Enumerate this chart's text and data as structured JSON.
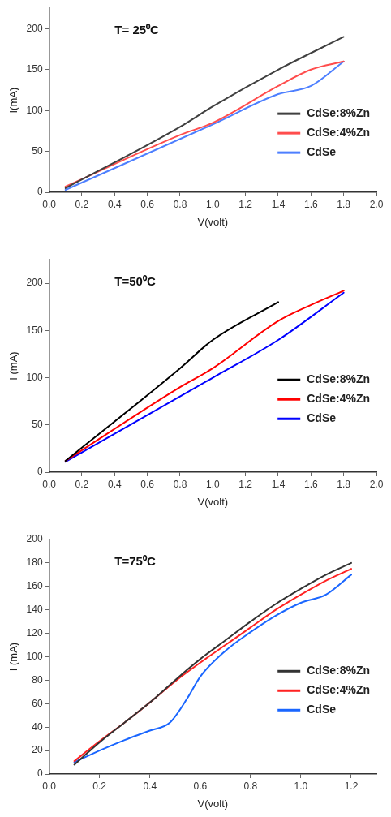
{
  "chart_data": [
    {
      "type": "line",
      "title": "T= 25⁰C",
      "xlabel": "V(volt)",
      "ylabel": "I(mA)",
      "xlim": [
        0,
        2
      ],
      "xticks": [
        {
          "value": 0,
          "label": "0.0"
        },
        0.2,
        0.4,
        0.6,
        0.8,
        {
          "value": 1,
          "label": "1.0"
        },
        1.2,
        1.4,
        1.6,
        1.8,
        {
          "value": 2,
          "label": "2.0"
        }
      ],
      "ylim": [
        0,
        225
      ],
      "yticks": [
        0,
        50,
        100,
        150,
        200
      ],
      "grid": false,
      "legend": "right",
      "marker": "none",
      "series": [
        {
          "name": "CdSe:8%Zn",
          "color": "#404040",
          "x": [
            0.1,
            0.8,
            1.0,
            1.4,
            1.8
          ],
          "values": [
            5,
            80,
            105,
            150,
            190
          ]
        },
        {
          "name": "CdSe:4%Zn",
          "color": "#ff4d4d",
          "x": [
            0.1,
            0.8,
            1.0,
            1.4,
            1.6,
            1.8
          ],
          "values": [
            7,
            70,
            85,
            130,
            150,
            160
          ]
        },
        {
          "name": "CdSe",
          "color": "#4d7fff",
          "x": [
            0.1,
            1.0,
            1.4,
            1.6,
            1.8
          ],
          "values": [
            3,
            83,
            120,
            130,
            160
          ]
        }
      ]
    },
    {
      "type": "line",
      "title": "T=50⁰C",
      "xlabel": "V(volt)",
      "ylabel": "I (mA)",
      "xlim": [
        0,
        2
      ],
      "xticks": [
        {
          "value": 0,
          "label": "0.0"
        },
        0.2,
        0.4,
        0.6,
        0.8,
        {
          "value": 1,
          "label": "1.0"
        },
        1.2,
        1.4,
        1.6,
        1.8,
        {
          "value": 2,
          "label": "2.0"
        }
      ],
      "ylim": [
        0,
        225
      ],
      "yticks": [
        0,
        50,
        100,
        150,
        200
      ],
      "grid": false,
      "legend": "right",
      "marker": "none",
      "series": [
        {
          "name": "CdSe:8%Zn",
          "color": "#000000",
          "x": [
            0.1,
            0.8,
            1.0,
            1.4
          ],
          "values": [
            12,
            110,
            140,
            180
          ]
        },
        {
          "name": "CdSe:4%Zn",
          "color": "#ff0000",
          "x": [
            0.1,
            0.8,
            1.0,
            1.4,
            1.6,
            1.8
          ],
          "values": [
            12,
            90,
            110,
            160,
            177,
            192
          ]
        },
        {
          "name": "CdSe",
          "color": "#0000ff",
          "x": [
            0.1,
            1.0,
            1.4,
            1.8
          ],
          "values": [
            11,
            100,
            140,
            190
          ]
        }
      ]
    },
    {
      "type": "line",
      "title": "T=75⁰C",
      "xlabel": "V(volt)",
      "ylabel": "I (mA)",
      "xlim": [
        0,
        1.3
      ],
      "xticks": [
        {
          "value": 0,
          "label": "0.0"
        },
        0.2,
        0.4,
        0.6,
        0.8,
        {
          "value": 1,
          "label": "1.0"
        },
        1.2
      ],
      "ylim": [
        0,
        200
      ],
      "yticks": [
        0,
        20,
        40,
        60,
        80,
        100,
        120,
        140,
        160,
        180,
        200
      ],
      "grid": false,
      "legend": "right",
      "marker": "none",
      "series": [
        {
          "name": "CdSe:8%Zn",
          "color": "#333333",
          "x": [
            0.1,
            0.2,
            0.3,
            0.4,
            0.5,
            0.6,
            0.7,
            0.8,
            0.9,
            1.0,
            1.1,
            1.2
          ],
          "values": [
            8,
            27,
            44,
            61,
            80,
            98,
            114,
            130,
            145,
            158,
            170,
            180
          ]
        },
        {
          "name": "CdSe:4%Zn",
          "color": "#ff2222",
          "x": [
            0.1,
            0.2,
            0.3,
            0.4,
            0.5,
            0.6,
            0.7,
            0.8,
            0.9,
            1.0,
            1.1,
            1.2
          ],
          "values": [
            11,
            28,
            44,
            61,
            79,
            95,
            110,
            125,
            140,
            153,
            165,
            175
          ]
        },
        {
          "name": "CdSe",
          "color": "#1a66ff",
          "x": [
            0.1,
            0.2,
            0.3,
            0.4,
            0.48,
            0.55,
            0.6,
            0.7,
            0.8,
            0.9,
            1.0,
            1.1,
            1.2
          ],
          "values": [
            10,
            20,
            29,
            37,
            44,
            65,
            83,
            105,
            121,
            135,
            146,
            153,
            170
          ]
        }
      ]
    }
  ]
}
